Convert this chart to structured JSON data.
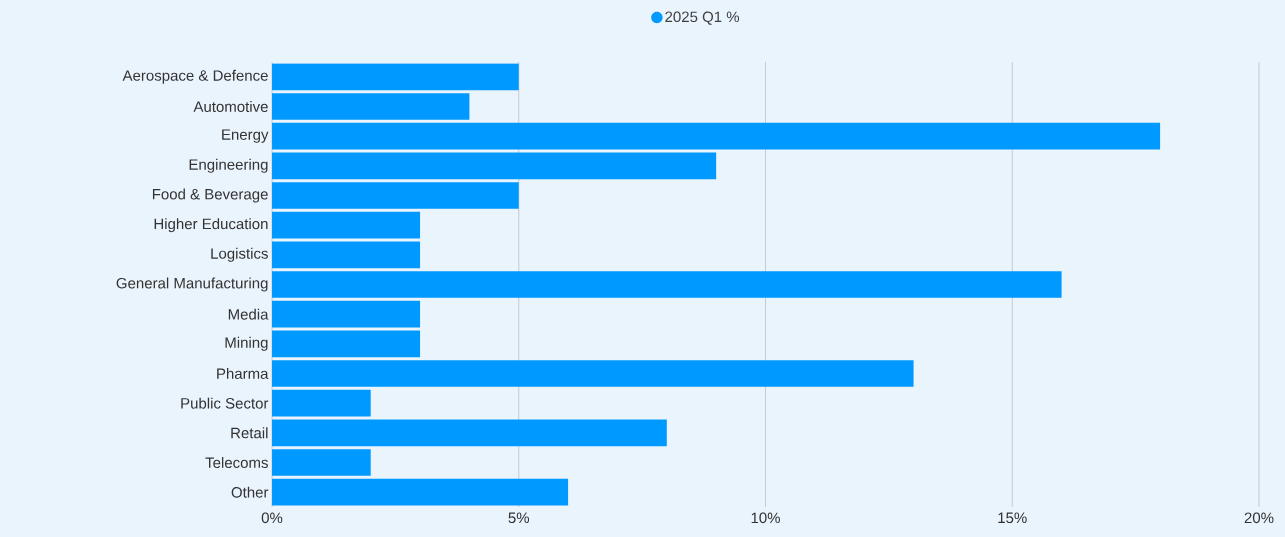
{
  "chart_data": {
    "type": "bar",
    "orientation": "horizontal",
    "categories": [
      "Aerospace & Defence",
      "Automotive",
      "Energy",
      "Engineering",
      "Food & Beverage",
      "Higher Education",
      "Logistics",
      "General Manufacturing",
      "Media",
      "Mining",
      "Pharma",
      "Public Sector",
      "Retail",
      "Telecoms",
      "Other"
    ],
    "series": [
      {
        "name": "2025 Q1 %",
        "color": "#0099ff",
        "values": [
          5,
          4,
          18,
          9,
          5,
          3,
          3,
          16,
          3,
          3,
          13,
          2,
          8,
          2,
          6
        ]
      }
    ],
    "xlim": [
      0,
      20
    ],
    "xticks": [
      {
        "value": 0,
        "label": "0%"
      },
      {
        "value": 5,
        "label": "5%"
      },
      {
        "value": 10,
        "label": "10%"
      },
      {
        "value": 15,
        "label": "15%"
      },
      {
        "value": 20,
        "label": "20%"
      }
    ],
    "grid": "x",
    "legend": "top"
  }
}
